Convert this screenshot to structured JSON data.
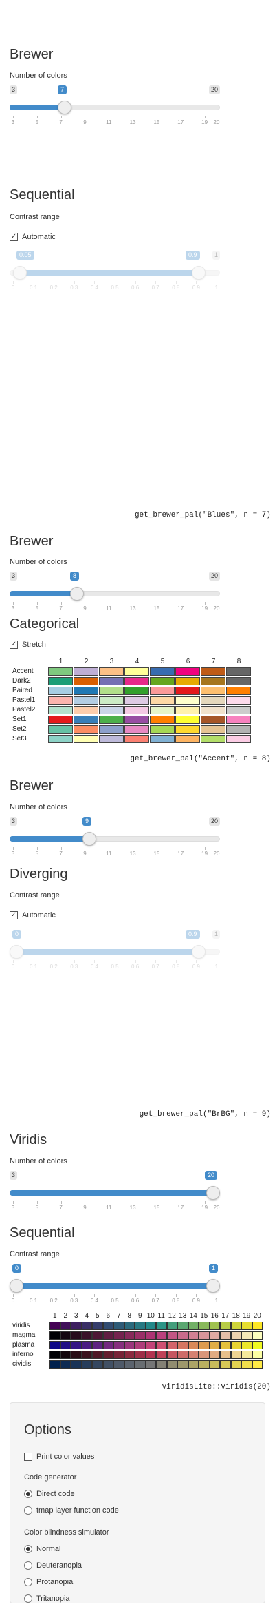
{
  "s1": {
    "heading": "Brewer",
    "label": "Number of colors",
    "min": "3",
    "max": "20",
    "value": "7",
    "ticks": [
      "3",
      "5",
      "7",
      "9",
      "11",
      "13",
      "15",
      "17",
      "19",
      "20"
    ]
  },
  "s2": {
    "heading": "Sequential",
    "range_label": "Contrast range",
    "auto_label": "Automatic",
    "low": "0.05",
    "high": "0.9",
    "max": "1",
    "ticks": [
      "0",
      "0.1",
      "0.2",
      "0.3",
      "0.4",
      "0.5",
      "0.6",
      "0.7",
      "0.8",
      "0.9",
      "1"
    ],
    "code": "get_brewer_pal(\"Blues\", n = 7)"
  },
  "s3": {
    "heading": "Brewer",
    "label": "Number of colors",
    "min": "3",
    "max": "20",
    "value": "8",
    "ticks": [
      "3",
      "5",
      "7",
      "9",
      "11",
      "13",
      "15",
      "17",
      "19",
      "20"
    ]
  },
  "s4": {
    "heading": "Categorical",
    "stretch_label": "Stretch",
    "numbers": [
      "1",
      "2",
      "3",
      "4",
      "5",
      "6",
      "7",
      "8"
    ],
    "palettes": [
      {
        "name": "Accent",
        "colors": [
          "#7fc97f",
          "#beaed4",
          "#fdc086",
          "#ffff99",
          "#386cb0",
          "#f0027f",
          "#bf5b17",
          "#666666"
        ]
      },
      {
        "name": "Dark2",
        "colors": [
          "#1b9e77",
          "#d95f02",
          "#7570b3",
          "#e7298a",
          "#66a61e",
          "#e6ab02",
          "#a6761d",
          "#666666"
        ]
      },
      {
        "name": "Paired",
        "colors": [
          "#a6cee3",
          "#1f78b4",
          "#b2df8a",
          "#33a02c",
          "#fb9a99",
          "#e31a1c",
          "#fdbf6f",
          "#ff7f00"
        ]
      },
      {
        "name": "Pastel1",
        "colors": [
          "#fbb4ae",
          "#b3cde3",
          "#ccebc5",
          "#decbe4",
          "#fed9a6",
          "#ffffcc",
          "#e5d8bd",
          "#fddaec"
        ]
      },
      {
        "name": "Pastel2",
        "colors": [
          "#b3e2cd",
          "#fdcdac",
          "#cbd5e8",
          "#f4cae4",
          "#e6f5c9",
          "#fff2ae",
          "#f1e2cc",
          "#cccccc"
        ]
      },
      {
        "name": "Set1",
        "colors": [
          "#e41a1c",
          "#377eb8",
          "#4daf4a",
          "#984ea3",
          "#ff7f00",
          "#ffff33",
          "#a65628",
          "#f781bf"
        ]
      },
      {
        "name": "Set2",
        "colors": [
          "#66c2a5",
          "#fc8d62",
          "#8da0cb",
          "#e78ac3",
          "#a6d854",
          "#ffd92f",
          "#e5c494",
          "#b3b3b3"
        ]
      },
      {
        "name": "Set3",
        "colors": [
          "#8dd3c7",
          "#ffffb3",
          "#bebada",
          "#fb8072",
          "#80b1d3",
          "#fdb462",
          "#b3de69",
          "#fccde5"
        ]
      }
    ],
    "code": "get_brewer_pal(\"Accent\", n = 8)"
  },
  "s5": {
    "heading": "Brewer",
    "label": "Number of colors",
    "min": "3",
    "max": "20",
    "value": "9",
    "ticks": [
      "3",
      "5",
      "7",
      "9",
      "11",
      "13",
      "15",
      "17",
      "19",
      "20"
    ]
  },
  "s6": {
    "heading": "Diverging",
    "range_label": "Contrast range",
    "auto_label": "Automatic",
    "low": "0",
    "high": "0.9",
    "max": "1",
    "ticks": [
      "0",
      "0.1",
      "0.2",
      "0.3",
      "0.4",
      "0.5",
      "0.6",
      "0.7",
      "0.8",
      "0.9",
      "1"
    ],
    "code": "get_brewer_pal(\"BrBG\", n = 9)"
  },
  "s7": {
    "heading": "Viridis",
    "label": "Number of colors",
    "min": "3",
    "max": "20",
    "value": "20",
    "ticks": [
      "3",
      "5",
      "7",
      "9",
      "11",
      "13",
      "15",
      "17",
      "19",
      "20"
    ]
  },
  "s8": {
    "heading": "Sequential",
    "range_label": "Contrast range",
    "low": "0",
    "high": "1",
    "ticks": [
      "0",
      "0.1",
      "0.2",
      "0.3",
      "0.4",
      "0.5",
      "0.6",
      "0.7",
      "0.8",
      "0.9",
      "1"
    ]
  },
  "s9": {
    "numbers": [
      "1",
      "2",
      "3",
      "4",
      "5",
      "6",
      "7",
      "8",
      "9",
      "10",
      "11",
      "12",
      "13",
      "14",
      "15",
      "16",
      "17",
      "18",
      "19",
      "20"
    ],
    "palettes": [
      {
        "name": "viridis",
        "start": "#440154",
        "mid": "#21908c",
        "end": "#fde725"
      },
      {
        "name": "magma",
        "start": "#000004",
        "mid": "#b73779",
        "end": "#fcfdbf"
      },
      {
        "name": "plasma",
        "start": "#0d0887",
        "mid": "#cc4778",
        "end": "#f0f921"
      },
      {
        "name": "inferno",
        "start": "#000004",
        "mid": "#bc3754",
        "end": "#fcffa4"
      },
      {
        "name": "cividis",
        "start": "#00204d",
        "mid": "#7c7b78",
        "end": "#ffea46"
      }
    ],
    "code": "viridisLite::viridis(20)"
  },
  "options": {
    "heading": "Options",
    "print_label": "Print color values",
    "codegen_label": "Code generator",
    "direct_label": "Direct code",
    "tmap_label": "tmap layer function code",
    "cb_label": "Color blindness simulator",
    "cb_options": [
      "Normal",
      "Deuteranopia",
      "Protanopia",
      "Tritanopia"
    ]
  },
  "colors": {
    "accent": "#428bca"
  }
}
